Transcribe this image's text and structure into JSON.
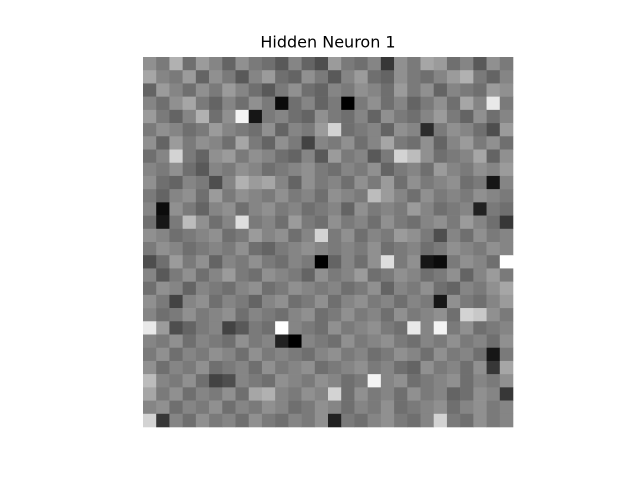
{
  "chart_data": {
    "type": "heatmap",
    "title": "Hidden Neuron 1",
    "colormap": "gray",
    "values": [
      [
        140,
        120,
        170,
        110,
        150,
        130,
        100,
        140,
        120,
        110,
        90,
        130,
        100,
        80,
        150,
        120,
        110,
        130,
        60,
        140,
        120,
        160,
        150,
        110,
        130,
        90,
        140,
        120
      ],
      [
        160,
        130,
        120,
        150,
        100,
        140,
        120,
        90,
        130,
        150,
        110,
        100,
        140,
        120,
        90,
        130,
        150,
        110,
        100,
        140,
        120,
        110,
        130,
        150,
        170,
        120,
        100,
        130
      ],
      [
        100,
        150,
        130,
        110,
        140,
        120,
        150,
        130,
        110,
        90,
        120,
        140,
        110,
        100,
        130,
        120,
        140,
        130,
        110,
        150,
        120,
        140,
        100,
        130,
        120,
        110,
        150,
        140
      ],
      [
        130,
        110,
        140,
        160,
        120,
        100,
        130,
        110,
        140,
        120,
        20,
        110,
        130,
        100,
        120,
        10,
        120,
        140,
        110,
        130,
        100,
        120,
        140,
        110,
        160,
        130,
        220,
        120
      ],
      [
        150,
        120,
        100,
        130,
        170,
        110,
        140,
        230,
        30,
        120,
        130,
        110,
        100,
        140,
        120,
        110,
        130,
        100,
        140,
        120,
        110,
        130,
        150,
        120,
        100,
        140,
        110,
        130
      ],
      [
        120,
        140,
        130,
        110,
        120,
        150,
        130,
        120,
        110,
        140,
        100,
        130,
        120,
        150,
        200,
        110,
        120,
        130,
        100,
        140,
        130,
        50,
        120,
        140,
        130,
        110,
        80,
        150
      ],
      [
        140,
        100,
        150,
        120,
        140,
        130,
        110,
        160,
        120,
        100,
        140,
        120,
        70,
        130,
        120,
        140,
        110,
        130,
        160,
        120,
        110,
        140,
        100,
        130,
        150,
        120,
        140,
        110
      ],
      [
        110,
        130,
        200,
        120,
        100,
        140,
        150,
        120,
        140,
        130,
        110,
        100,
        130,
        90,
        150,
        120,
        130,
        90,
        120,
        200,
        180,
        140,
        110,
        120,
        130,
        160,
        100,
        140
      ],
      [
        130,
        120,
        140,
        110,
        90,
        130,
        120,
        140,
        130,
        110,
        120,
        130,
        140,
        120,
        110,
        130,
        120,
        140,
        100,
        120,
        130,
        110,
        150,
        130,
        120,
        140,
        130,
        150
      ],
      [
        140,
        110,
        100,
        130,
        120,
        80,
        130,
        170,
        150,
        160,
        130,
        100,
        140,
        120,
        130,
        110,
        140,
        120,
        150,
        110,
        140,
        120,
        130,
        140,
        110,
        120,
        30,
        130
      ],
      [
        120,
        100,
        130,
        140,
        110,
        150,
        120,
        140,
        130,
        120,
        140,
        120,
        130,
        110,
        140,
        130,
        120,
        180,
        150,
        130,
        110,
        140,
        120,
        130,
        120,
        140,
        130,
        120
      ],
      [
        130,
        20,
        140,
        120,
        100,
        130,
        140,
        110,
        130,
        140,
        120,
        130,
        110,
        120,
        130,
        100,
        140,
        120,
        130,
        120,
        150,
        130,
        110,
        120,
        130,
        40,
        120,
        110
      ],
      [
        110,
        30,
        120,
        180,
        140,
        110,
        130,
        210,
        120,
        130,
        110,
        150,
        120,
        110,
        140,
        120,
        130,
        110,
        140,
        120,
        110,
        130,
        140,
        120,
        150,
        130,
        110,
        60
      ],
      [
        140,
        130,
        110,
        120,
        130,
        140,
        110,
        120,
        150,
        130,
        140,
        110,
        130,
        200,
        120,
        140,
        110,
        130,
        120,
        150,
        140,
        120,
        80,
        130,
        110,
        140,
        120,
        130
      ],
      [
        120,
        140,
        130,
        110,
        120,
        130,
        120,
        140,
        110,
        100,
        120,
        130,
        140,
        130,
        120,
        130,
        120,
        140,
        110,
        120,
        130,
        110,
        120,
        140,
        130,
        120,
        140,
        130
      ],
      [
        80,
        110,
        150,
        120,
        140,
        100,
        130,
        120,
        140,
        120,
        110,
        130,
        120,
        10,
        100,
        130,
        110,
        140,
        210,
        120,
        140,
        30,
        20,
        120,
        140,
        130,
        110,
        240
      ],
      [
        130,
        90,
        120,
        140,
        110,
        130,
        150,
        120,
        110,
        140,
        130,
        120,
        100,
        140,
        120,
        130,
        150,
        110,
        120,
        140,
        130,
        110,
        120,
        140,
        100,
        130,
        150,
        120
      ],
      [
        110,
        140,
        130,
        100,
        130,
        120,
        110,
        130,
        140,
        110,
        120,
        140,
        130,
        120,
        130,
        110,
        120,
        140,
        100,
        130,
        120,
        140,
        110,
        100,
        130,
        120,
        140,
        160
      ],
      [
        140,
        120,
        70,
        130,
        140,
        110,
        130,
        120,
        100,
        130,
        140,
        110,
        120,
        140,
        110,
        130,
        140,
        120,
        130,
        110,
        130,
        120,
        30,
        140,
        120,
        110,
        130,
        150
      ],
      [
        130,
        110,
        120,
        140,
        120,
        130,
        140,
        110,
        130,
        120,
        110,
        130,
        140,
        110,
        120,
        140,
        120,
        130,
        110,
        140,
        120,
        130,
        140,
        110,
        200,
        190,
        140,
        120
      ],
      [
        220,
        150,
        80,
        100,
        120,
        130,
        70,
        90,
        120,
        110,
        240,
        130,
        120,
        110,
        140,
        120,
        130,
        140,
        120,
        110,
        220,
        130,
        230,
        120,
        140,
        110,
        120,
        130
      ],
      [
        130,
        120,
        140,
        110,
        130,
        120,
        110,
        140,
        120,
        130,
        40,
        10,
        130,
        120,
        110,
        140,
        120,
        130,
        140,
        120,
        110,
        130,
        120,
        140,
        120,
        130,
        110,
        140
      ],
      [
        120,
        140,
        110,
        130,
        120,
        140,
        130,
        110,
        140,
        120,
        130,
        120,
        110,
        130,
        140,
        120,
        130,
        110,
        120,
        140,
        130,
        110,
        140,
        120,
        130,
        110,
        30,
        120
      ],
      [
        140,
        110,
        130,
        120,
        140,
        110,
        120,
        130,
        110,
        140,
        120,
        130,
        140,
        110,
        120,
        130,
        140,
        120,
        130,
        110,
        100,
        140,
        120,
        130,
        110,
        140,
        60,
        160
      ],
      [
        180,
        130,
        120,
        140,
        110,
        70,
        80,
        130,
        120,
        110,
        140,
        130,
        120,
        140,
        130,
        110,
        120,
        230,
        130,
        140,
        110,
        120,
        130,
        140,
        110,
        130,
        120,
        140
      ],
      [
        160,
        120,
        140,
        110,
        130,
        120,
        140,
        110,
        160,
        170,
        130,
        120,
        140,
        130,
        200,
        110,
        140,
        120,
        130,
        110,
        140,
        120,
        130,
        100,
        110,
        140,
        130,
        60
      ],
      [
        130,
        140,
        110,
        130,
        120,
        140,
        110,
        130,
        120,
        140,
        130,
        110,
        120,
        140,
        130,
        110,
        130,
        120,
        140,
        110,
        120,
        130,
        140,
        110,
        130,
        140,
        120,
        130
      ],
      [
        200,
        60,
        130,
        110,
        140,
        120,
        130,
        110,
        140,
        120,
        110,
        130,
        120,
        140,
        40,
        120,
        110,
        130,
        140,
        120,
        110,
        130,
        200,
        120,
        110,
        140,
        120,
        130
      ]
    ]
  }
}
